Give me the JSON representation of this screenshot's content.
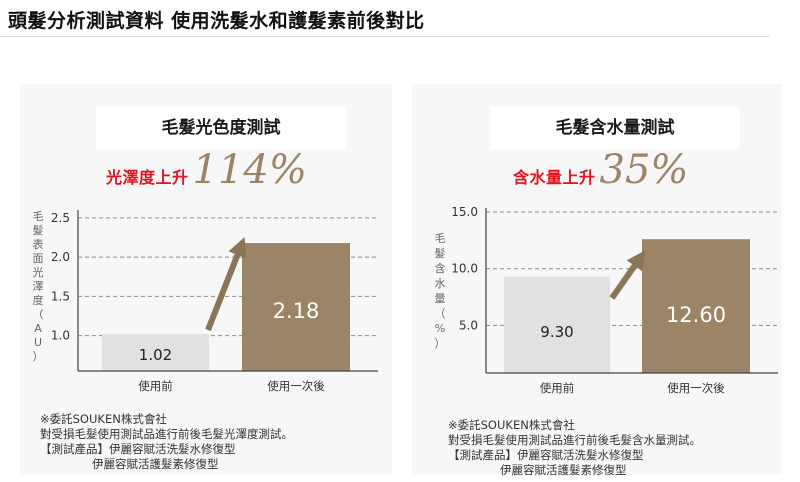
{
  "page": {
    "title": "頭髮分析測試資料 使用洗髮水和護髮素前後對比"
  },
  "colors": {
    "before_bar": "#dfe1e3",
    "after_bar": "#9b8566",
    "arrow": "#8a7656",
    "headline_red": "#e0141e",
    "axis": "#444444",
    "grid": "#8c8c8c"
  },
  "charts": [
    {
      "title": "毛髮光色度測試",
      "headline_label": "光澤度上升",
      "headline_value": "114%",
      "ylabel_chars": [
        "毛",
        "髮",
        "表",
        "面",
        "光",
        "澤",
        "度",
        "（",
        "A",
        "U",
        "）"
      ],
      "footnote": {
        "l1": "※委託SOUKEN株式會社",
        "l2": "對受損毛髮使用測試品進行前後毛髮光澤度測試。",
        "l3": "【測試產品】伊麗容賦活洗髮水修復型",
        "l4": "伊麗容賦活護髮素修復型"
      }
    },
    {
      "title": "毛髮含水量測試",
      "headline_label": "含水量上升",
      "headline_value": "35%",
      "ylabel_chars": [
        "毛",
        "髮",
        "含",
        "水",
        "量",
        "（",
        "%",
        "）"
      ],
      "footnote": {
        "l1": "※委託SOUKEN株式會社",
        "l2": "對受損毛髮使用測試品進行前後毛髮含水量測試。",
        "l3": "【測試產品】伊麗容賦活洗髮水修復型",
        "l4": "伊麗容賦活護髮素修復型"
      }
    }
  ],
  "chart_data": [
    {
      "type": "bar",
      "title": "毛髮光色度測試",
      "categories": [
        "使用前",
        "使用一次後"
      ],
      "values": [
        1.02,
        2.18
      ],
      "value_labels": [
        "1.02",
        "2.18"
      ],
      "yticks": [
        "1.0",
        "1.5",
        "2.0",
        "2.5"
      ],
      "ylabel": "毛髮表面光澤度（AU）",
      "ylim": [
        0.55,
        2.55
      ],
      "grid": true,
      "annotation": "光澤度上升114%"
    },
    {
      "type": "bar",
      "title": "毛髮含水量測試",
      "categories": [
        "使用前",
        "使用一次後"
      ],
      "values": [
        9.3,
        12.6
      ],
      "value_labels": [
        "9.30",
        "12.60"
      ],
      "yticks": [
        "5.0",
        "10.0",
        "15.0"
      ],
      "ylabel": "毛髮含水量（%）",
      "ylim": [
        0.8,
        15.0
      ],
      "grid": true,
      "annotation": "含水量上升35%"
    }
  ]
}
